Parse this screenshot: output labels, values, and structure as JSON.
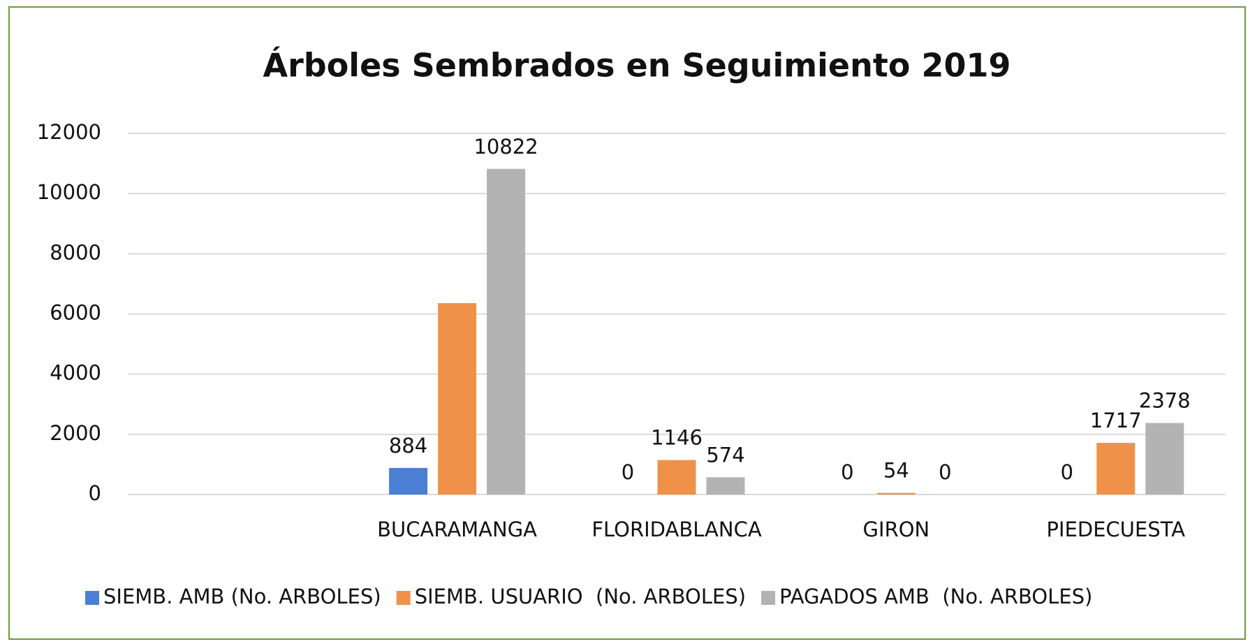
{
  "chart_data": {
    "type": "bar",
    "title": "Árboles Sembrados en Seguimiento 2019",
    "categories": [
      null,
      "BUCARAMANGA",
      "FLORIDABLANCA",
      "GIRON",
      "PIEDECUESTA"
    ],
    "series": [
      {
        "name": "SIEMB. AMB (No. ARBOLES)",
        "color": "#4a7fd4",
        "values": [
          null,
          884,
          0,
          0,
          0
        ],
        "value_labels": [
          null,
          "884",
          "0",
          "0",
          "0"
        ]
      },
      {
        "name": "SIEMB. USUARIO  (No. ARBOLES)",
        "color": "#f0914a",
        "values": [
          null,
          6360,
          1146,
          54,
          1717
        ],
        "value_labels": [
          null,
          null,
          "1146",
          "54",
          "1717"
        ]
      },
      {
        "name": "PAGADOS AMB  (No. ARBOLES)",
        "color": "#b3b3b3",
        "values": [
          null,
          10822,
          574,
          0,
          2378
        ],
        "value_labels": [
          null,
          "10822",
          "574",
          "0",
          "2378"
        ]
      }
    ],
    "ylim": [
      0,
      12000
    ],
    "yticks": [
      0,
      2000,
      4000,
      6000,
      8000,
      10000,
      12000
    ],
    "grid": true,
    "legend": "bottom"
  }
}
